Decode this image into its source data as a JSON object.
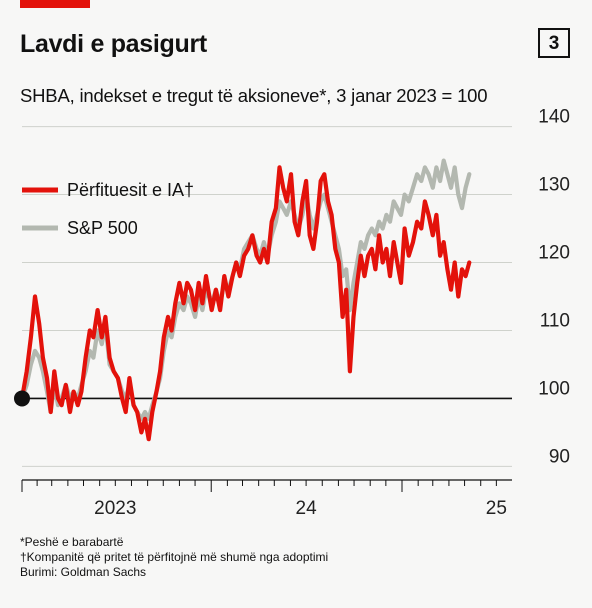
{
  "header": {
    "title": "Lavdi e pasigurt",
    "chart_number": "3",
    "subtitle": "SHBA, indekset e tregut të aksioneve*, 3 janar 2023 = 100"
  },
  "footnotes": [
    "*Peshë e barabartë",
    "†Kompanitë që pritet të përfitojnë më shumë nga adoptimi",
    "Burimi: Goldman Sachs"
  ],
  "colors": {
    "accent": "#e3120b",
    "ai": "#e3120b",
    "sp": "#b3b8b0",
    "baseline": "#111111"
  },
  "chart_data": {
    "type": "line",
    "title": "Lavdi e pasigurt",
    "subtitle": "SHBA, indekset e tregut të aksioneve*, 3 janar 2023 = 100",
    "xlabel": "",
    "ylabel": "",
    "ylim": [
      88,
      142
    ],
    "yticks": [
      90,
      100,
      110,
      120,
      130,
      140
    ],
    "grid": true,
    "y_axis_side": "right",
    "legend_position": "top-left",
    "x_tick_labels": [
      {
        "label": "2023",
        "date": "2023-07-01"
      },
      {
        "label": "24",
        "date": "2024-07-01"
      },
      {
        "label": "25",
        "date": "2025-07-01"
      }
    ],
    "xrange": [
      "2023-01-03",
      "2025-07-31"
    ],
    "series": [
      {
        "name": "Përfituesit e IA†",
        "points": [
          [
            "2023-01-03",
            100
          ],
          [
            "2023-01-12",
            104
          ],
          [
            "2023-01-20",
            109
          ],
          [
            "2023-01-28",
            115
          ],
          [
            "2023-02-05",
            111
          ],
          [
            "2023-02-12",
            106
          ],
          [
            "2023-02-20",
            103
          ],
          [
            "2023-02-27",
            98
          ],
          [
            "2023-03-06",
            104
          ],
          [
            "2023-03-13",
            100
          ],
          [
            "2023-03-20",
            99
          ],
          [
            "2023-03-28",
            102
          ],
          [
            "2023-04-05",
            98
          ],
          [
            "2023-04-12",
            101
          ],
          [
            "2023-04-20",
            99
          ],
          [
            "2023-04-27",
            101
          ],
          [
            "2023-05-05",
            106
          ],
          [
            "2023-05-13",
            110
          ],
          [
            "2023-05-20",
            109
          ],
          [
            "2023-05-28",
            113
          ],
          [
            "2023-06-05",
            109
          ],
          [
            "2023-06-12",
            112
          ],
          [
            "2023-06-20",
            106
          ],
          [
            "2023-06-28",
            104
          ],
          [
            "2023-07-06",
            103
          ],
          [
            "2023-07-14",
            100
          ],
          [
            "2023-07-21",
            98
          ],
          [
            "2023-07-28",
            103
          ],
          [
            "2023-08-05",
            99
          ],
          [
            "2023-08-12",
            98
          ],
          [
            "2023-08-20",
            95
          ],
          [
            "2023-08-27",
            97
          ],
          [
            "2023-09-03",
            94
          ],
          [
            "2023-09-10",
            98
          ],
          [
            "2023-09-18",
            101
          ],
          [
            "2023-09-25",
            104
          ],
          [
            "2023-10-02",
            109
          ],
          [
            "2023-10-10",
            112
          ],
          [
            "2023-10-17",
            110
          ],
          [
            "2023-10-24",
            114
          ],
          [
            "2023-11-01",
            117
          ],
          [
            "2023-11-09",
            114
          ],
          [
            "2023-11-16",
            117
          ],
          [
            "2023-11-23",
            116
          ],
          [
            "2023-12-01",
            113
          ],
          [
            "2023-12-08",
            117
          ],
          [
            "2023-12-15",
            114
          ],
          [
            "2023-12-22",
            118
          ],
          [
            "2024-01-02",
            113
          ],
          [
            "2024-01-10",
            116
          ],
          [
            "2024-01-18",
            113
          ],
          [
            "2024-01-26",
            118
          ],
          [
            "2024-02-03",
            115
          ],
          [
            "2024-02-11",
            118
          ],
          [
            "2024-02-18",
            120
          ],
          [
            "2024-02-25",
            118
          ],
          [
            "2024-03-04",
            121
          ],
          [
            "2024-03-12",
            122
          ],
          [
            "2024-03-20",
            124
          ],
          [
            "2024-03-28",
            121
          ],
          [
            "2024-04-04",
            120
          ],
          [
            "2024-04-11",
            122
          ],
          [
            "2024-04-18",
            120
          ],
          [
            "2024-04-26",
            126
          ],
          [
            "2024-05-04",
            128
          ],
          [
            "2024-05-11",
            134
          ],
          [
            "2024-05-18",
            131
          ],
          [
            "2024-05-25",
            129
          ],
          [
            "2024-06-02",
            133
          ],
          [
            "2024-06-09",
            126
          ],
          [
            "2024-06-16",
            124
          ],
          [
            "2024-06-24",
            129
          ],
          [
            "2024-07-01",
            132
          ],
          [
            "2024-07-08",
            124
          ],
          [
            "2024-07-15",
            122
          ],
          [
            "2024-07-22",
            126
          ],
          [
            "2024-07-29",
            132
          ],
          [
            "2024-08-05",
            133
          ],
          [
            "2024-08-12",
            129
          ],
          [
            "2024-08-19",
            127
          ],
          [
            "2024-08-26",
            122
          ],
          [
            "2024-09-02",
            120
          ],
          [
            "2024-09-09",
            112
          ],
          [
            "2024-09-16",
            116
          ],
          [
            "2024-09-23",
            104
          ],
          [
            "2024-09-30",
            112
          ],
          [
            "2024-10-07",
            117
          ],
          [
            "2024-10-14",
            121
          ],
          [
            "2024-10-21",
            118
          ],
          [
            "2024-10-28",
            121
          ],
          [
            "2024-11-04",
            122
          ],
          [
            "2024-11-11",
            119
          ],
          [
            "2024-11-18",
            124
          ],
          [
            "2024-11-25",
            120
          ],
          [
            "2024-12-02",
            122
          ],
          [
            "2024-12-09",
            118
          ],
          [
            "2024-12-16",
            123
          ],
          [
            "2024-12-23",
            120
          ],
          [
            "2024-12-30",
            117
          ],
          [
            "2025-01-06",
            125
          ],
          [
            "2025-01-14",
            121
          ],
          [
            "2025-01-22",
            123
          ],
          [
            "2025-01-30",
            126
          ],
          [
            "2025-02-07",
            125
          ],
          [
            "2025-02-14",
            129
          ],
          [
            "2025-02-21",
            127
          ],
          [
            "2025-03-01",
            124
          ],
          [
            "2025-03-08",
            127
          ],
          [
            "2025-03-15",
            121
          ],
          [
            "2025-03-22",
            123
          ],
          [
            "2025-03-29",
            119
          ],
          [
            "2025-04-05",
            116
          ],
          [
            "2025-04-12",
            120
          ],
          [
            "2025-04-19",
            115
          ],
          [
            "2025-04-26",
            119
          ],
          [
            "2025-05-03",
            118
          ],
          [
            "2025-05-10",
            120
          ]
        ]
      },
      {
        "name": "S&P 500",
        "points": [
          [
            "2023-01-03",
            100
          ],
          [
            "2023-01-12",
            102
          ],
          [
            "2023-01-20",
            105
          ],
          [
            "2023-01-28",
            107
          ],
          [
            "2023-02-05",
            106
          ],
          [
            "2023-02-12",
            104
          ],
          [
            "2023-02-20",
            101
          ],
          [
            "2023-02-27",
            98
          ],
          [
            "2023-03-06",
            102
          ],
          [
            "2023-03-13",
            99
          ],
          [
            "2023-03-20",
            100
          ],
          [
            "2023-03-28",
            102
          ],
          [
            "2023-04-05",
            100
          ],
          [
            "2023-04-12",
            101
          ],
          [
            "2023-04-20",
            100
          ],
          [
            "2023-04-27",
            102
          ],
          [
            "2023-05-05",
            104
          ],
          [
            "2023-05-13",
            107
          ],
          [
            "2023-05-20",
            106
          ],
          [
            "2023-05-28",
            110
          ],
          [
            "2023-06-05",
            108
          ],
          [
            "2023-06-12",
            111
          ],
          [
            "2023-06-20",
            105
          ],
          [
            "2023-06-28",
            104
          ],
          [
            "2023-07-06",
            103
          ],
          [
            "2023-07-14",
            101
          ],
          [
            "2023-07-21",
            100
          ],
          [
            "2023-07-28",
            102
          ],
          [
            "2023-08-05",
            99
          ],
          [
            "2023-08-12",
            98
          ],
          [
            "2023-08-20",
            97
          ],
          [
            "2023-08-27",
            98
          ],
          [
            "2023-09-03",
            97
          ],
          [
            "2023-09-10",
            99
          ],
          [
            "2023-09-18",
            101
          ],
          [
            "2023-09-25",
            103
          ],
          [
            "2023-10-02",
            107
          ],
          [
            "2023-10-10",
            110
          ],
          [
            "2023-10-17",
            109
          ],
          [
            "2023-10-24",
            112
          ],
          [
            "2023-11-01",
            114
          ],
          [
            "2023-11-09",
            113
          ],
          [
            "2023-11-16",
            115
          ],
          [
            "2023-11-23",
            114
          ],
          [
            "2023-12-01",
            112
          ],
          [
            "2023-12-08",
            115
          ],
          [
            "2023-12-15",
            113
          ],
          [
            "2023-12-22",
            116
          ],
          [
            "2024-01-02",
            114
          ],
          [
            "2024-01-10",
            116
          ],
          [
            "2024-01-18",
            114
          ],
          [
            "2024-01-26",
            117
          ],
          [
            "2024-02-03",
            116
          ],
          [
            "2024-02-11",
            118
          ],
          [
            "2024-02-18",
            120
          ],
          [
            "2024-02-25",
            119
          ],
          [
            "2024-03-04",
            122
          ],
          [
            "2024-03-12",
            123
          ],
          [
            "2024-03-20",
            124
          ],
          [
            "2024-03-28",
            122
          ],
          [
            "2024-04-04",
            121
          ],
          [
            "2024-04-11",
            123
          ],
          [
            "2024-04-18",
            121
          ],
          [
            "2024-04-26",
            124
          ],
          [
            "2024-05-04",
            126
          ],
          [
            "2024-05-11",
            129
          ],
          [
            "2024-05-18",
            128
          ],
          [
            "2024-05-25",
            127
          ],
          [
            "2024-06-02",
            129
          ],
          [
            "2024-06-09",
            127
          ],
          [
            "2024-06-16",
            125
          ],
          [
            "2024-06-24",
            127
          ],
          [
            "2024-07-01",
            130
          ],
          [
            "2024-07-08",
            127
          ],
          [
            "2024-07-15",
            125
          ],
          [
            "2024-07-22",
            127
          ],
          [
            "2024-07-29",
            129
          ],
          [
            "2024-08-05",
            130
          ],
          [
            "2024-08-12",
            128
          ],
          [
            "2024-08-19",
            126
          ],
          [
            "2024-08-26",
            124
          ],
          [
            "2024-09-02",
            122
          ],
          [
            "2024-09-09",
            118
          ],
          [
            "2024-09-16",
            119
          ],
          [
            "2024-09-23",
            113
          ],
          [
            "2024-09-30",
            117
          ],
          [
            "2024-10-07",
            120
          ],
          [
            "2024-10-14",
            123
          ],
          [
            "2024-10-21",
            122
          ],
          [
            "2024-10-28",
            124
          ],
          [
            "2024-11-04",
            125
          ],
          [
            "2024-11-11",
            124
          ],
          [
            "2024-11-18",
            126
          ],
          [
            "2024-11-25",
            125
          ],
          [
            "2024-12-02",
            127
          ],
          [
            "2024-12-09",
            126
          ],
          [
            "2024-12-16",
            129
          ],
          [
            "2024-12-23",
            128
          ],
          [
            "2024-12-30",
            127
          ],
          [
            "2025-01-06",
            130
          ],
          [
            "2025-01-14",
            129
          ],
          [
            "2025-01-22",
            131
          ],
          [
            "2025-01-30",
            133
          ],
          [
            "2025-02-07",
            132
          ],
          [
            "2025-02-14",
            134
          ],
          [
            "2025-02-21",
            133
          ],
          [
            "2025-03-01",
            131
          ],
          [
            "2025-03-08",
            134
          ],
          [
            "2025-03-15",
            132
          ],
          [
            "2025-03-22",
            135
          ],
          [
            "2025-03-29",
            133
          ],
          [
            "2025-04-05",
            131
          ],
          [
            "2025-04-12",
            134
          ],
          [
            "2025-04-19",
            130
          ],
          [
            "2025-04-26",
            128
          ],
          [
            "2025-05-03",
            131
          ],
          [
            "2025-05-10",
            133
          ]
        ]
      }
    ]
  }
}
